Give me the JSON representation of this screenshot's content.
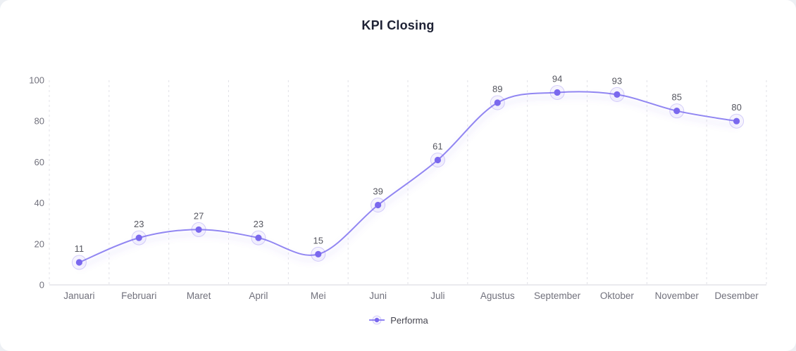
{
  "title": "KPI Closing",
  "colors": {
    "page_bg": "#edf0f4",
    "card_bg": "#ffffff",
    "line": "#9186f2",
    "dot": "#7a68ee",
    "halo_fill": "rgba(122,104,238,0.07)",
    "halo_stroke": "rgba(122,104,238,0.30)",
    "line_shadow": "#7a68ee",
    "grid": "#e1e1e7",
    "axis": "#d6d6dc",
    "tick_text": "#71717c",
    "point_label_text": "#55565f",
    "title_text": "#1e2235",
    "legend_text": "#44444e"
  },
  "legend": {
    "items": [
      {
        "label": "Performa"
      }
    ]
  },
  "chart_data": {
    "type": "line",
    "title": "KPI Closing",
    "categories": [
      "Januari",
      "Februari",
      "Maret",
      "April",
      "Mei",
      "Juni",
      "Juli",
      "Agustus",
      "September",
      "Oktober",
      "November",
      "Desember"
    ],
    "series": [
      {
        "name": "Performa",
        "values": [
          11,
          23,
          27,
          23,
          15,
          39,
          61,
          89,
          94,
          93,
          85,
          80
        ]
      }
    ],
    "xlabel": "",
    "ylabel": "",
    "ylim": [
      0,
      100
    ],
    "yticks": [
      0,
      20,
      40,
      60,
      80,
      100
    ],
    "grid": "vertical-dashed",
    "legend_position": "bottom",
    "smooth": true,
    "point_labels": true
  }
}
